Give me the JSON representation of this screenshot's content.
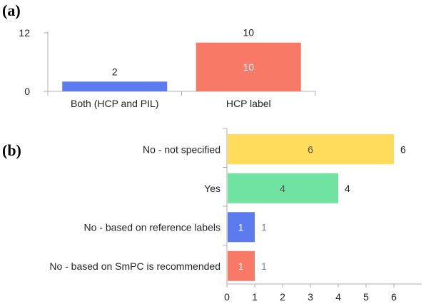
{
  "panel_labels": {
    "a": "(a)",
    "b": "(b)"
  },
  "colors": {
    "blue": "#5B7BEF",
    "salmon": "#F77966",
    "yellow": "#FFDC5C",
    "green": "#6FE39F",
    "axis": "#b0b0b0",
    "text": "#222222",
    "inner_light": "#ffffff",
    "inner_dark": "#555555"
  },
  "chart_data": [
    {
      "type": "bar",
      "orientation": "vertical",
      "categories": [
        "Both (HCP and PIL)",
        "HCP label"
      ],
      "values": [
        2,
        10
      ],
      "value_labels": [
        "2",
        "10"
      ],
      "inner_labels": [
        "",
        "10"
      ],
      "bar_colors": [
        "#5B7BEF",
        "#F77966"
      ],
      "ylim": [
        0,
        12
      ],
      "yticks": [
        "0",
        "12"
      ],
      "title": "",
      "xlabel": "",
      "ylabel": ""
    },
    {
      "type": "bar",
      "orientation": "horizontal",
      "categories": [
        "No - not specified",
        "Yes",
        "No - based on reference labels",
        "No - based on SmPC is recommended"
      ],
      "values": [
        6,
        4,
        1,
        1
      ],
      "value_labels": [
        "6",
        "4",
        "1",
        "1"
      ],
      "inner_labels": [
        "6",
        "4",
        "1",
        "1"
      ],
      "bar_colors": [
        "#FFDC5C",
        "#6FE39F",
        "#5B7BEF",
        "#F77966"
      ],
      "inner_label_colors": [
        "#555555",
        "#555555",
        "#ffffff",
        "#ffffff"
      ],
      "xlim": [
        0,
        7
      ],
      "xticks": [
        "0",
        "1",
        "2",
        "3",
        "4",
        "5",
        "6"
      ],
      "title": "",
      "xlabel": "",
      "ylabel": ""
    }
  ]
}
